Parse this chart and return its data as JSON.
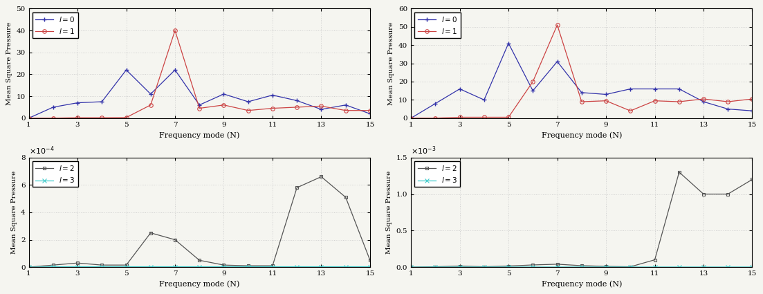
{
  "x": [
    1,
    2,
    3,
    4,
    5,
    6,
    7,
    8,
    9,
    10,
    11,
    12,
    13,
    14,
    15
  ],
  "tl_l0": [
    0,
    5,
    7,
    7.5,
    22,
    11,
    22,
    6,
    11,
    7.5,
    10.5,
    8,
    4,
    6,
    2
  ],
  "tl_l1": [
    0,
    0,
    0.2,
    0.2,
    0.3,
    6,
    40,
    4.5,
    6,
    3.5,
    4.5,
    5,
    5.5,
    3.5,
    3.5
  ],
  "tr_l0": [
    0,
    8,
    16,
    10,
    41,
    15,
    31,
    14,
    13,
    16,
    16,
    16,
    9,
    5,
    4
  ],
  "tr_l1": [
    0,
    0,
    0.5,
    0.5,
    0.5,
    20,
    51,
    9,
    9.5,
    4,
    9.5,
    9,
    10.5,
    9,
    10.5
  ],
  "bl_l2": [
    0,
    1.5e-05,
    3e-05,
    1.5e-05,
    1.5e-05,
    0.00025,
    0.0002,
    5e-05,
    1.5e-05,
    1e-05,
    1e-05,
    0.00058,
    0.00066,
    0.00051,
    5e-05
  ],
  "bl_l3": [
    0,
    3e-06,
    3e-06,
    3e-06,
    3e-06,
    3e-06,
    3e-06,
    3e-06,
    3e-06,
    3e-06,
    3e-06,
    3e-06,
    3e-06,
    3e-06,
    3e-06
  ],
  "br_l2": [
    0,
    5e-06,
    1.5e-05,
    5e-06,
    1.5e-05,
    3e-05,
    4e-05,
    2e-05,
    1e-05,
    5e-06,
    0.0001,
    0.0013,
    0.001,
    0.001,
    0.0012
  ],
  "br_l3": [
    0,
    2e-06,
    2e-06,
    2e-06,
    2e-06,
    2e-06,
    2e-06,
    2e-06,
    2e-06,
    2e-06,
    2e-06,
    2e-06,
    2e-06,
    2e-06,
    2e-06
  ],
  "color_blue": "#3333AA",
  "color_red": "#CC4444",
  "color_gray": "#555555",
  "color_cyan": "#44CCCC",
  "bg_color": "#F5F5F0",
  "grid_color": "#CCCCCC",
  "ylabel": "Mean Square Pressure",
  "xlabel": "Frequency mode (N)"
}
